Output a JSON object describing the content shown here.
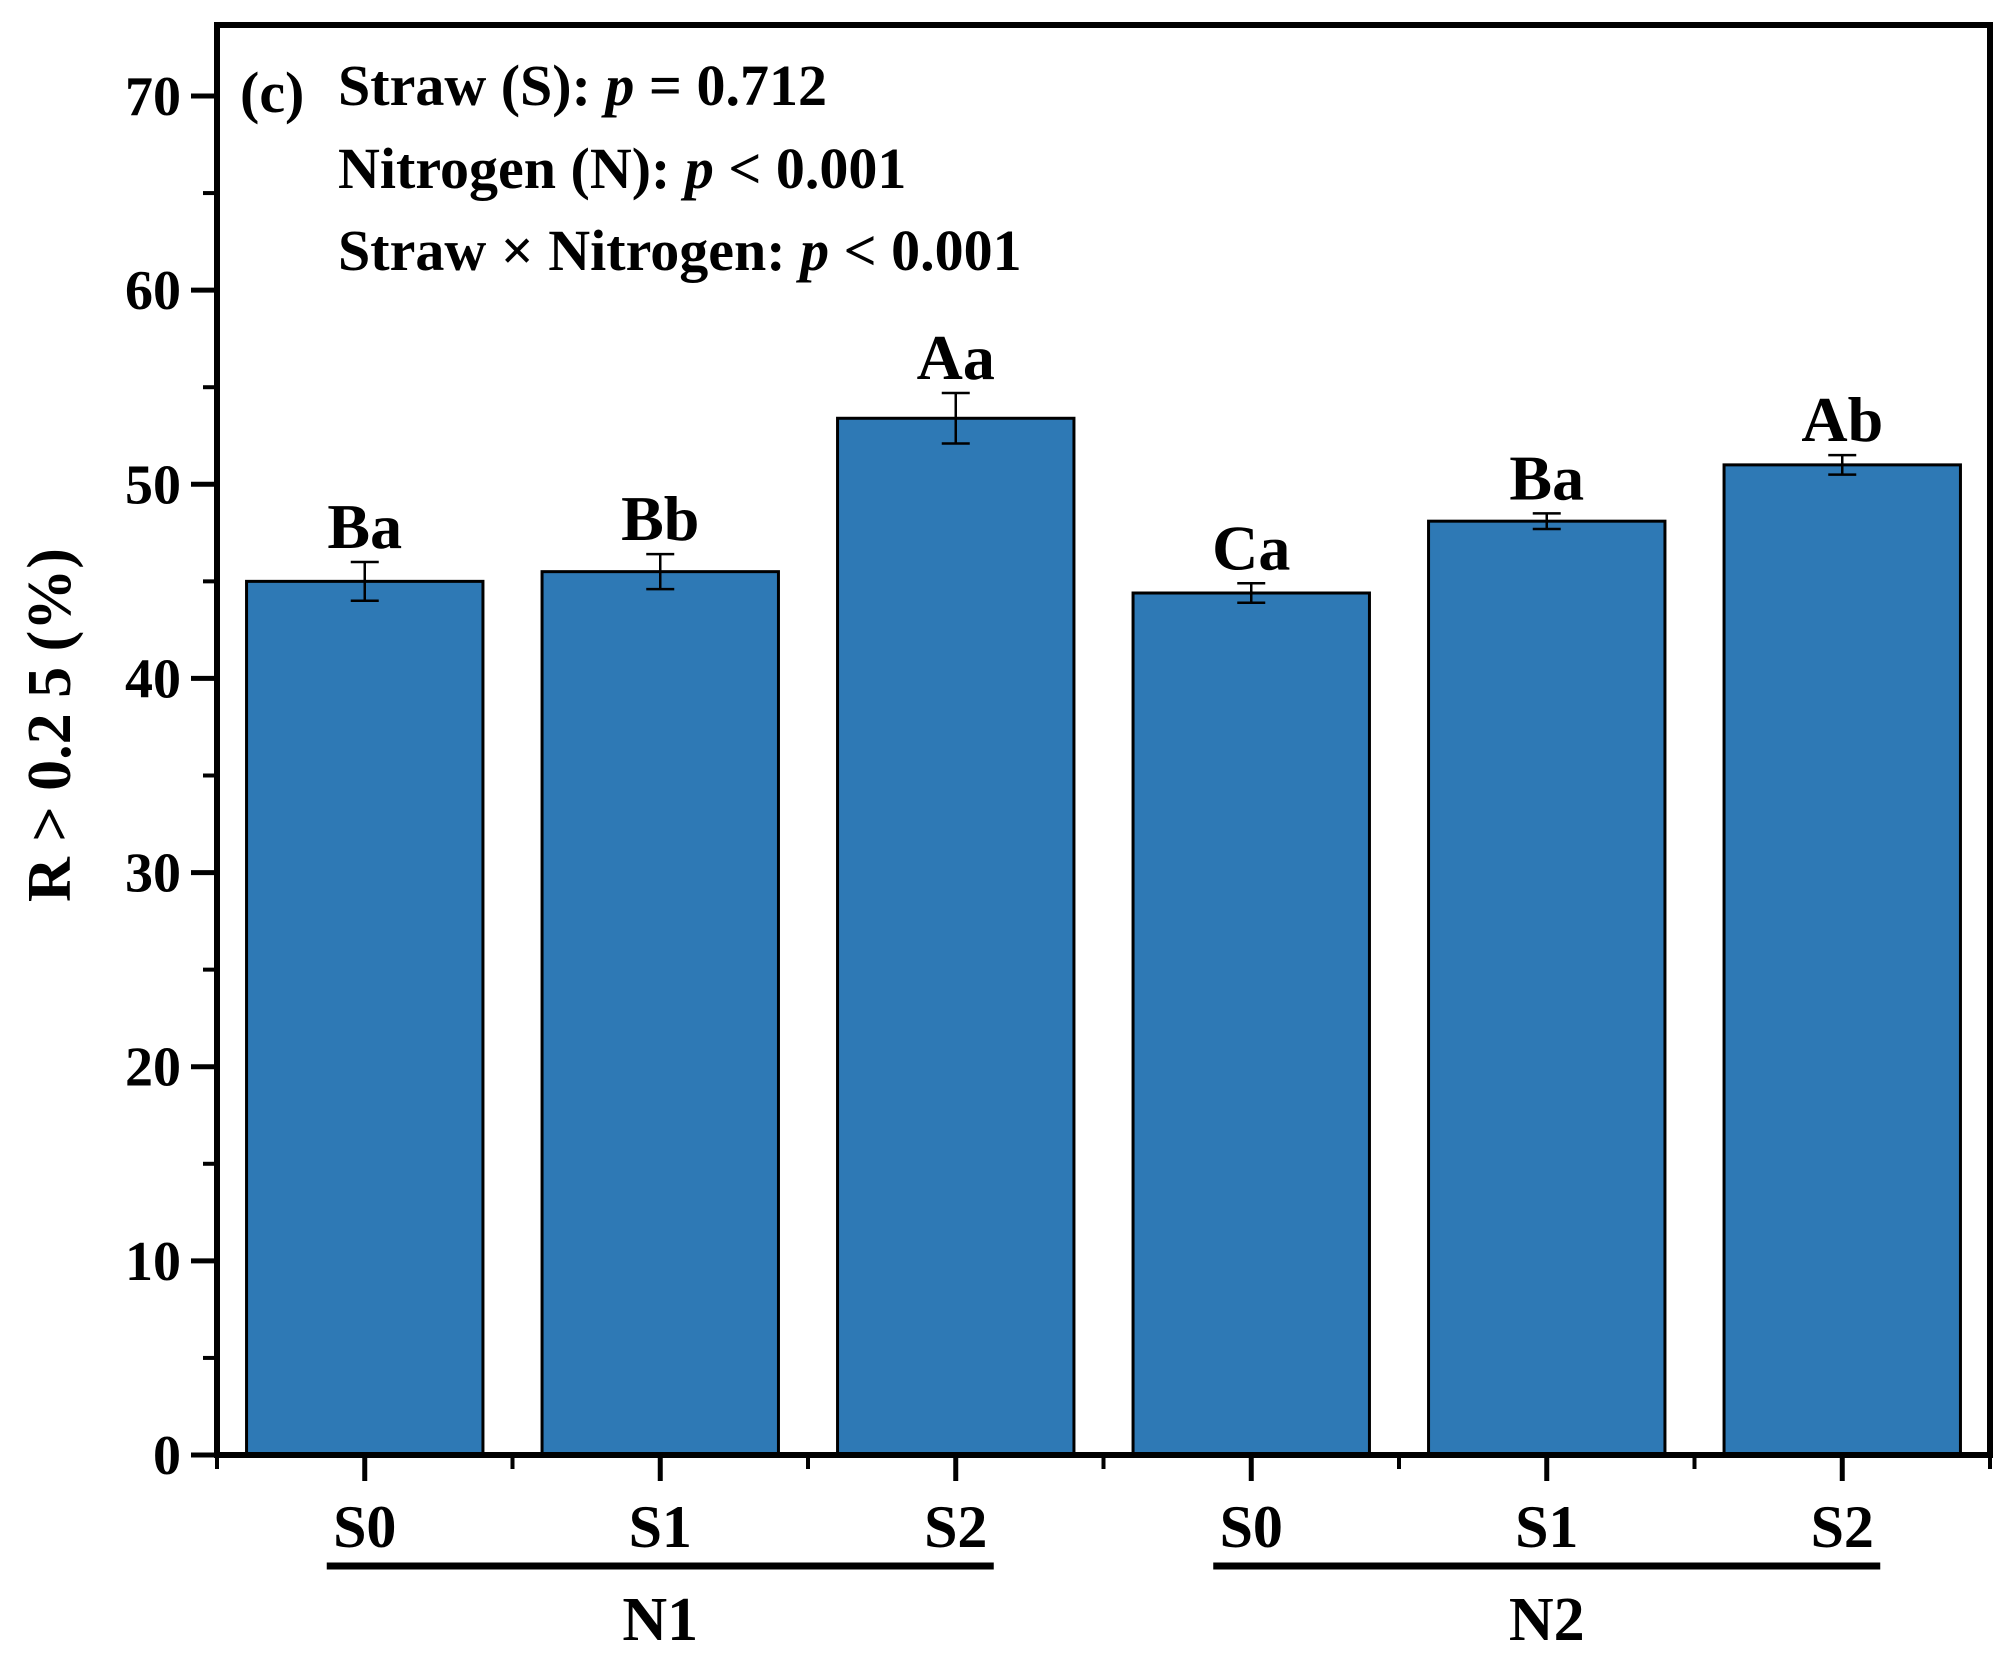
{
  "chart_data": {
    "type": "bar",
    "panel_label": "(c)",
    "annotation_lines": [
      {
        "label": "Straw (S): ",
        "p": "p",
        "rest": " = 0.712"
      },
      {
        "label": "Nitrogen (N): ",
        "p": "p",
        "rest": " < 0.001"
      },
      {
        "label": "Straw × Nitrogen: ",
        "p": "p",
        "rest": " < 0.001"
      }
    ],
    "ylabel": "R > 0.2 5 (%)",
    "ylim": [
      0,
      70
    ],
    "yticks": [
      0,
      10,
      20,
      30,
      40,
      50,
      60,
      70
    ],
    "categories": [
      "S0",
      "S1",
      "S2",
      "S0",
      "S1",
      "S2"
    ],
    "groups": [
      {
        "name": "N1",
        "start": 0,
        "end": 2
      },
      {
        "name": "N2",
        "start": 3,
        "end": 5
      }
    ],
    "values": [
      45.0,
      45.5,
      53.4,
      44.4,
      48.1,
      51.0
    ],
    "errors": [
      1.0,
      0.9,
      1.3,
      0.5,
      0.4,
      0.5
    ],
    "significance_labels": [
      "Ba",
      "Bb",
      "Aa",
      "Ca",
      "Ba",
      "Ab"
    ],
    "bar_color": "#2e79b5",
    "grid": false,
    "legend": "none"
  }
}
